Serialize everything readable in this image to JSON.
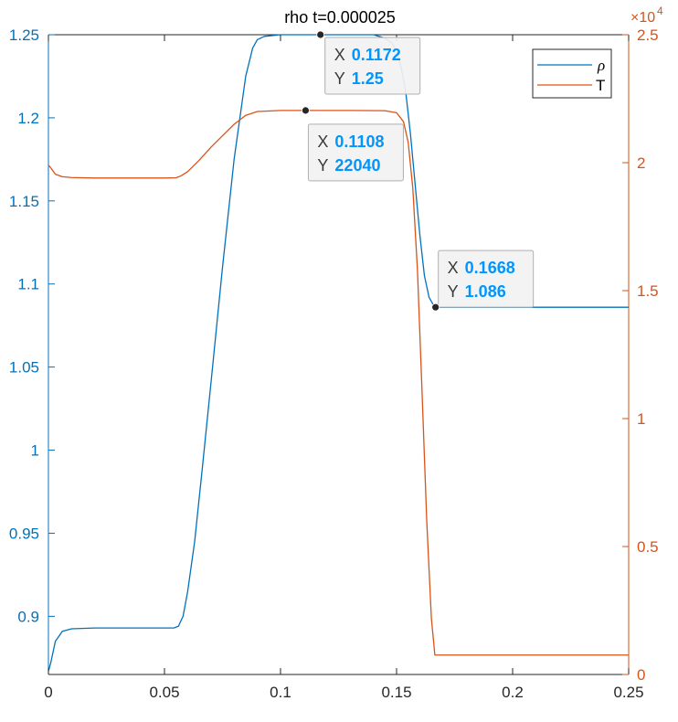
{
  "chart_data": {
    "type": "line",
    "title": "rho t=0.000025",
    "xlim": [
      0,
      0.25
    ],
    "x_ticks": [
      "0",
      "0.05",
      "0.1",
      "0.15",
      "0.2",
      "0.25"
    ],
    "y_left": {
      "lim": [
        0.865,
        1.25
      ],
      "ticks": [
        "0.9",
        "0.95",
        "1",
        "1.05",
        "1.1",
        "1.15",
        "1.2",
        "1.25"
      ],
      "color": "#0072BD"
    },
    "y_right": {
      "lim": [
        0,
        25000
      ],
      "ticks": [
        "0",
        "0.5",
        "1",
        "1.5",
        "2",
        "2.5"
      ],
      "exponent_base": "×10",
      "exponent_power": "4",
      "color": "#D95319"
    },
    "series": [
      {
        "name": "ρ",
        "axis": "left",
        "color": "#0072BD",
        "x": [
          0,
          0.001,
          0.003,
          0.006,
          0.01,
          0.02,
          0.03,
          0.04,
          0.05,
          0.054,
          0.056,
          0.058,
          0.06,
          0.063,
          0.066,
          0.07,
          0.075,
          0.08,
          0.085,
          0.088,
          0.09,
          0.093,
          0.1,
          0.12,
          0.14,
          0.145,
          0.148,
          0.15,
          0.152,
          0.154,
          0.156,
          0.158,
          0.16,
          0.162,
          0.164,
          0.166,
          0.1668,
          0.17,
          0.2,
          0.25
        ],
        "y": [
          0.867,
          0.872,
          0.885,
          0.891,
          0.8925,
          0.893,
          0.893,
          0.893,
          0.893,
          0.893,
          0.894,
          0.9,
          0.915,
          0.945,
          0.985,
          1.04,
          1.11,
          1.175,
          1.225,
          1.242,
          1.247,
          1.249,
          1.25,
          1.25,
          1.25,
          1.248,
          1.245,
          1.24,
          1.23,
          1.215,
          1.19,
          1.16,
          1.13,
          1.105,
          1.092,
          1.087,
          1.086,
          1.086,
          1.086,
          1.086
        ]
      },
      {
        "name": "T",
        "axis": "right",
        "color": "#D95319",
        "x": [
          0,
          0.001,
          0.003,
          0.006,
          0.01,
          0.02,
          0.03,
          0.04,
          0.05,
          0.055,
          0.057,
          0.06,
          0.065,
          0.07,
          0.075,
          0.08,
          0.085,
          0.09,
          0.1,
          0.11,
          0.12,
          0.13,
          0.145,
          0.15,
          0.153,
          0.155,
          0.157,
          0.159,
          0.161,
          0.163,
          0.165,
          0.1665,
          0.17,
          0.2,
          0.25
        ],
        "y": [
          19900,
          19800,
          19550,
          19450,
          19420,
          19400,
          19400,
          19400,
          19400,
          19410,
          19480,
          19650,
          20100,
          20600,
          21050,
          21500,
          21850,
          22000,
          22040,
          22040,
          22040,
          22040,
          22030,
          21950,
          21600,
          20800,
          19000,
          15800,
          11000,
          6000,
          2200,
          760,
          760,
          760,
          760
        ]
      }
    ],
    "legend": {
      "position": "top-right",
      "entries": [
        "ρ",
        "T"
      ]
    },
    "datatips": [
      {
        "series": 0,
        "x": 0.1172,
        "y": 1.25,
        "x_label": "0.1172",
        "y_label": "1.25"
      },
      {
        "series": 1,
        "x": 0.1108,
        "y": 22040,
        "x_label": "0.1108",
        "y_label": "22040"
      },
      {
        "series": 0,
        "x": 0.1668,
        "y": 1.086,
        "x_label": "0.1668",
        "y_label": "1.086"
      }
    ],
    "datatip_keys": {
      "x": "X",
      "y": "Y"
    },
    "datatip_value_color": "#0096ff",
    "axis_color": "#262626",
    "grid": false
  }
}
